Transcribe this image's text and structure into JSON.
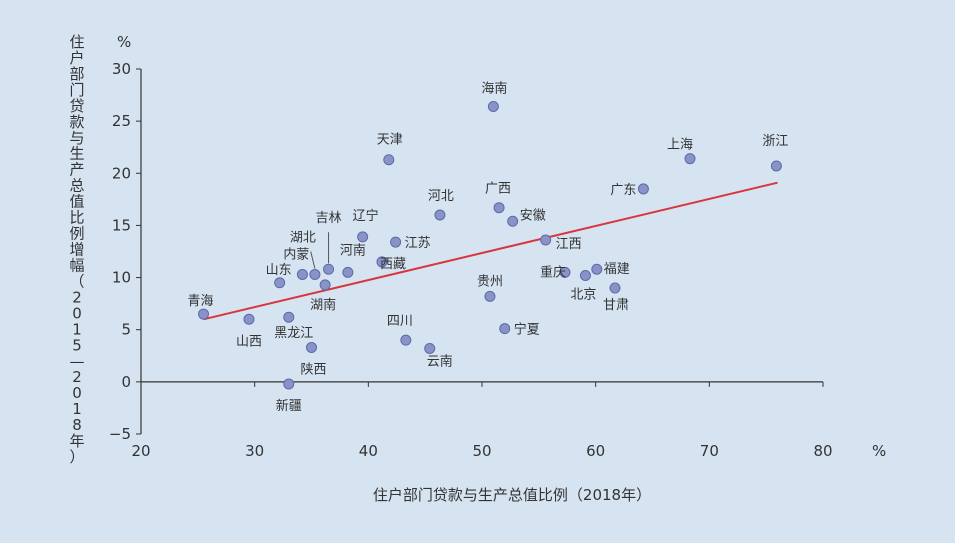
{
  "chart_data": {
    "type": "scatter",
    "title": "",
    "xlabel": "住户部门贷款与生产总值比例（2018年）",
    "ylabel": "住户部门贷款与生产总值比例增幅（2015—2018年）",
    "x_unit": "%",
    "y_unit": "%",
    "xlim": [
      20,
      80
    ],
    "ylim": [
      -5,
      30
    ],
    "xticks": [
      20,
      30,
      40,
      50,
      60,
      70,
      80
    ],
    "yticks": [
      -5,
      0,
      5,
      10,
      15,
      20,
      25,
      30
    ],
    "grid": false,
    "points": [
      {
        "name": "青海",
        "x": 25.5,
        "y": 6.5
      },
      {
        "name": "山西",
        "x": 29.5,
        "y": 6.0
      },
      {
        "name": "黑龙江",
        "x": 33.0,
        "y": 6.2
      },
      {
        "name": "山东",
        "x": 32.2,
        "y": 9.5
      },
      {
        "name": "内蒙",
        "x": 34.2,
        "y": 10.3
      },
      {
        "name": "湖北",
        "x": 35.3,
        "y": 10.3
      },
      {
        "name": "吉林",
        "x": 36.5,
        "y": 10.8
      },
      {
        "name": "湖南",
        "x": 36.2,
        "y": 9.3
      },
      {
        "name": "河南",
        "x": 38.2,
        "y": 10.5
      },
      {
        "name": "辽宁",
        "x": 39.5,
        "y": 13.9
      },
      {
        "name": "西藏",
        "x": 41.2,
        "y": 11.5
      },
      {
        "name": "江苏",
        "x": 42.4,
        "y": 13.4
      },
      {
        "name": "陕西",
        "x": 35.0,
        "y": 3.3
      },
      {
        "name": "新疆",
        "x": 33.0,
        "y": -0.2
      },
      {
        "name": "天津",
        "x": 41.8,
        "y": 21.3
      },
      {
        "name": "四川",
        "x": 43.3,
        "y": 4.0
      },
      {
        "name": "云南",
        "x": 45.4,
        "y": 3.2
      },
      {
        "name": "河北",
        "x": 46.3,
        "y": 16.0
      },
      {
        "name": "海南",
        "x": 51.0,
        "y": 26.4
      },
      {
        "name": "广西",
        "x": 51.5,
        "y": 16.7
      },
      {
        "name": "安徽",
        "x": 52.7,
        "y": 15.4
      },
      {
        "name": "贵州",
        "x": 50.7,
        "y": 8.2
      },
      {
        "name": "宁夏",
        "x": 52.0,
        "y": 5.1
      },
      {
        "name": "江西",
        "x": 55.6,
        "y": 13.6
      },
      {
        "name": "重庆",
        "x": 57.3,
        "y": 10.5
      },
      {
        "name": "北京",
        "x": 59.1,
        "y": 10.2
      },
      {
        "name": "福建",
        "x": 60.1,
        "y": 10.8
      },
      {
        "name": "甘肃",
        "x": 61.7,
        "y": 9.0
      },
      {
        "name": "广东",
        "x": 64.2,
        "y": 18.5
      },
      {
        "name": "上海",
        "x": 68.3,
        "y": 21.4
      },
      {
        "name": "浙江",
        "x": 75.9,
        "y": 20.7
      }
    ],
    "trendline": {
      "x1": 25.5,
      "y1": 6.0,
      "x2": 76.0,
      "y2": 19.1
    },
    "colors": {
      "point": "#8a93c8",
      "point_edge": "#5d6aa8",
      "trendline": "#d9353f",
      "axis": "#333333"
    }
  }
}
